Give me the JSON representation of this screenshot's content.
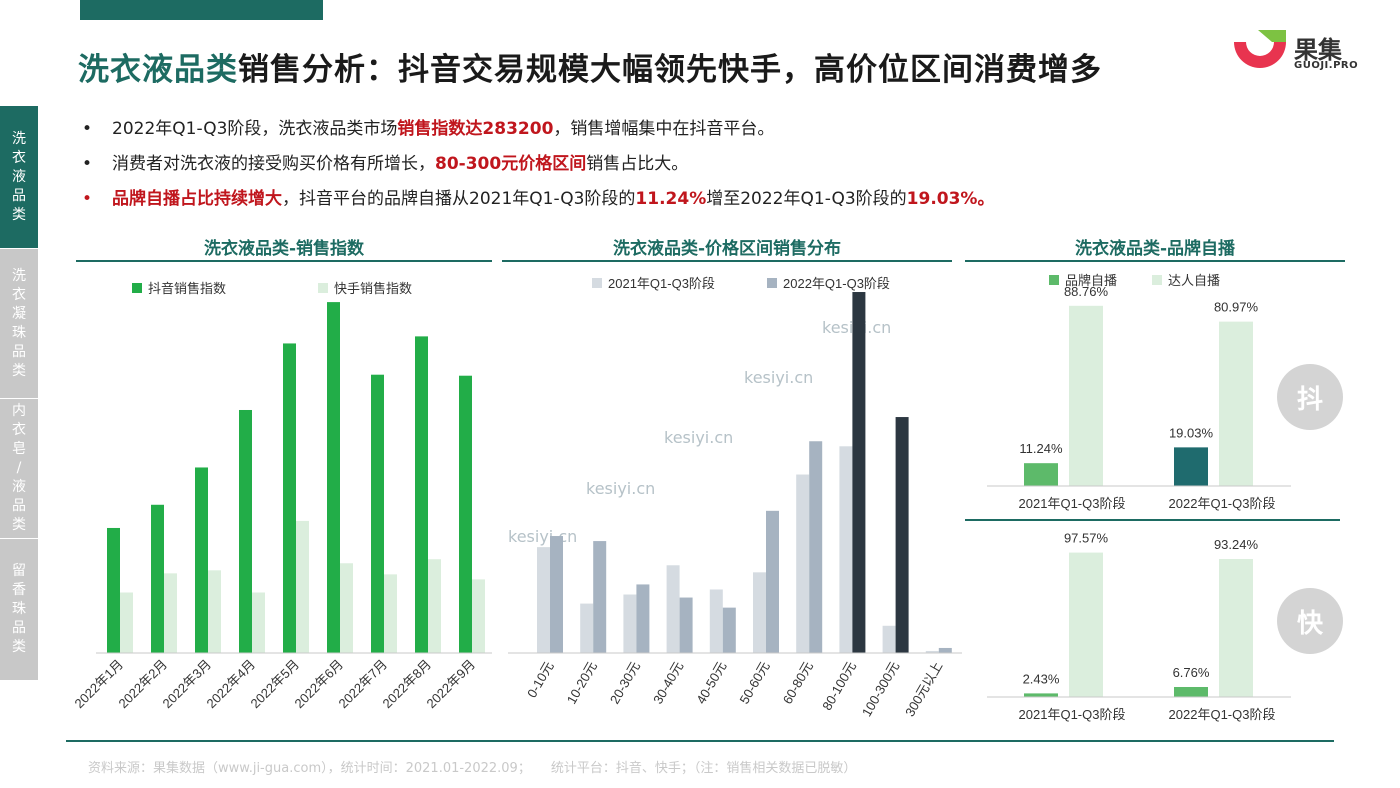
{
  "title": {
    "part1": "洗衣液品类",
    "part2": "销售分析：抖音交易规模大幅领先快手，高价位区间消费增多"
  },
  "logo": {
    "name": "果集",
    "sub": "GUOJI.PRO"
  },
  "sidebar": {
    "items": [
      {
        "label": "洗衣液品类",
        "active": true
      },
      {
        "label": "洗衣凝珠品类",
        "active": false
      },
      {
        "label": "内衣皂/液品类",
        "active": false
      },
      {
        "label": "留香珠品类",
        "active": false
      }
    ]
  },
  "bullets": {
    "b1": {
      "pre": "2022年Q1-Q3阶段，洗衣液品类市场",
      "hl": "销售指数达283200",
      "post": "，销售增幅集中在抖音平台。"
    },
    "b2": {
      "pre": "消费者对洗衣液的接受购买价格有所增长，",
      "hl": "80-300元价格区间",
      "post": "销售占比大。"
    },
    "b3": {
      "hl": "品牌自播占比持续增大",
      "pre": "，抖音平台的品牌自播从2021年Q1-Q3阶段的",
      "hl2": "11.24%",
      "mid": "增至2022年Q1-Q3阶段的",
      "hl3": "19.03%。"
    }
  },
  "watermark": "kesiyi.cn",
  "badges": {
    "douyin": "抖",
    "kuaishou": "快"
  },
  "footer": {
    "source": "资料来源：果集数据（www.ji-gua.com），统计时间：2021.01-2022.09；",
    "platform": "统计平台：抖音、快手；（注：销售相关数据已脱敏）"
  },
  "colors": {
    "primary": "#1d6b62",
    "green": "#22ad48",
    "light_green": "#dbeedd",
    "light_gray": "#d5dbe1",
    "gray_blue": "#a6b3c1",
    "dark_navy": "#2c3741",
    "highlight": "#c0161d",
    "brand_green": "#5dba6a",
    "teal_dark": "#1f6b6e"
  },
  "chart_data": [
    {
      "type": "bar",
      "title": "洗衣液品类-销售指数",
      "categories": [
        "2022年1月",
        "2022年2月",
        "2022年3月",
        "2022年4月",
        "2022年5月",
        "2022年6月",
        "2022年7月",
        "2022年8月",
        "2022年9月"
      ],
      "series": [
        {
          "name": "抖音销售指数",
          "color": "#22ad48",
          "values": [
            124,
            147,
            184,
            241,
            307,
            348,
            276,
            314,
            275
          ]
        },
        {
          "name": "快手销售指数",
          "color": "#dbeedd",
          "values": [
            60,
            79,
            82,
            60,
            131,
            89,
            78,
            93,
            73
          ]
        }
      ],
      "legend": "top",
      "ylim": [
        0,
        360
      ]
    },
    {
      "type": "bar",
      "title": "洗衣液品类-价格区间销售分布",
      "categories": [
        "0-10元",
        "10-20元",
        "20-30元",
        "30-40元",
        "40-50元",
        "50-60元",
        "60-80元",
        "80-100元",
        "100-300元",
        "300元以上"
      ],
      "series": [
        {
          "name": "2021年Q1-Q3阶段",
          "color": "#d5dbe1",
          "values": [
            105,
            49,
            58,
            87,
            63,
            80,
            177,
            205,
            27,
            2
          ]
        },
        {
          "name": "2022年Q1-Q3阶段",
          "color": "#a6b3c1",
          "values": [
            116,
            111,
            68,
            55,
            45,
            141,
            210,
            358,
            234,
            5
          ]
        }
      ],
      "highlight_color": "#2c3741",
      "highlight_categories": [
        "80-100元",
        "100-300元"
      ],
      "legend": "top",
      "ylim": [
        0,
        360
      ]
    },
    {
      "type": "bar",
      "title": "洗衣液品类-品牌自播",
      "platform": "抖",
      "categories": [
        "2021年Q1-Q3阶段",
        "2022年Q1-Q3阶段"
      ],
      "series": [
        {
          "name": "品牌自播",
          "color": "#5dba6a",
          "values": [
            11.24,
            19.03
          ],
          "labels": [
            "11.24%",
            "19.03%"
          ]
        },
        {
          "name": "达人自播",
          "color": "#dbeedd",
          "values": [
            88.76,
            80.97
          ],
          "labels": [
            "88.76%",
            "80.97%"
          ]
        }
      ],
      "bar_colors_brand": [
        "#5dba6a",
        "#1f6b6e"
      ],
      "legend": "top",
      "ylim": [
        0,
        100
      ]
    },
    {
      "type": "bar",
      "platform": "快",
      "categories": [
        "2021年Q1-Q3阶段",
        "2022年Q1-Q3阶段"
      ],
      "series": [
        {
          "name": "品牌自播",
          "color": "#5dba6a",
          "values": [
            2.43,
            6.76
          ],
          "labels": [
            "2.43%",
            "6.76%"
          ]
        },
        {
          "name": "达人自播",
          "color": "#dbeedd",
          "values": [
            97.57,
            93.24
          ],
          "labels": [
            "97.57%",
            "93.24%"
          ]
        }
      ],
      "ylim": [
        0,
        100
      ]
    }
  ]
}
